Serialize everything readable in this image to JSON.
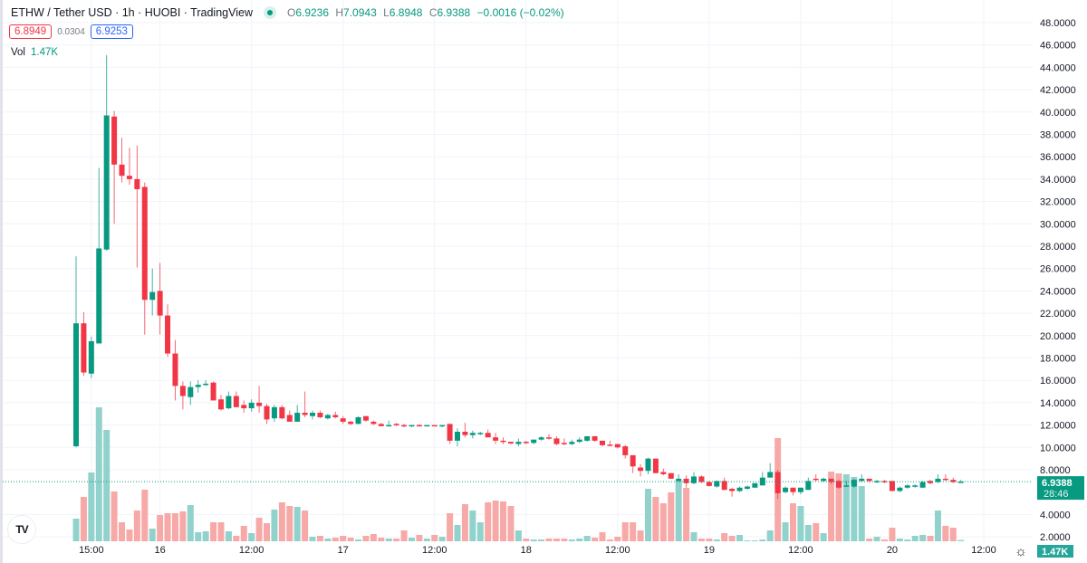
{
  "header": {
    "title": "ETHW / Tether USD · 1h · HUOBI · TradingView",
    "status_icon": "market-open-dot-icon",
    "ohlc": {
      "o_label": "O",
      "o": "6.9236",
      "h_label": "H",
      "h": "7.0943",
      "l_label": "L",
      "l": "6.8948",
      "c_label": "C",
      "c": "6.9388",
      "change": "−0.0016 (−0.02%)"
    },
    "bid": "6.8949",
    "spread": "0.0304",
    "ask": "6.9253",
    "volume_label": "Vol",
    "volume_value": "1.47K"
  },
  "price_axis": {
    "last_price": "6.9388",
    "countdown": "28:46",
    "volume_badge": "1.47K"
  },
  "colors": {
    "up": "#089981",
    "down": "#f23645",
    "volume_up": "#92d2cc",
    "volume_down": "#f7a9a7",
    "bid_border": "#f23645",
    "ask_border": "#2962ff"
  },
  "logo_text": "TV",
  "settings_icon": "gear-icon",
  "chart_data": {
    "type": "candlestick",
    "title": "ETHW / Tether USD · 1h · HUOBI",
    "interval": "1h",
    "ylim": [
      2,
      48
    ],
    "grid": true,
    "y_ticks": [
      "48.0000",
      "46.0000",
      "44.0000",
      "42.0000",
      "40.0000",
      "38.0000",
      "36.0000",
      "34.0000",
      "32.0000",
      "30.0000",
      "28.0000",
      "26.0000",
      "24.0000",
      "22.0000",
      "20.0000",
      "18.0000",
      "16.0000",
      "14.0000",
      "12.0000",
      "10.0000",
      "8.0000",
      "4.0000",
      "2.0000"
    ],
    "x_ticks": [
      "15:00",
      "16",
      "12:00",
      "17",
      "12:00",
      "18",
      "12:00",
      "19",
      "12:00",
      "20",
      "12:00"
    ],
    "ohlc": [
      [
        10.1,
        27.1,
        10.0,
        21.1
      ],
      [
        21.1,
        22.1,
        16.4,
        16.7
      ],
      [
        16.6,
        19.9,
        16.2,
        19.5
      ],
      [
        19.3,
        35.0,
        19.3,
        27.8
      ],
      [
        27.7,
        45.1,
        27.6,
        39.7
      ],
      [
        39.6,
        40.1,
        30.0,
        35.3
      ],
      [
        35.3,
        37.7,
        33.7,
        34.3
      ],
      [
        34.3,
        36.8,
        33.5,
        34.0
      ],
      [
        34.0,
        37.0,
        26.1,
        33.1
      ],
      [
        33.3,
        33.7,
        20.1,
        23.2
      ],
      [
        23.2,
        26.0,
        21.8,
        23.9
      ],
      [
        24.0,
        26.5,
        20.1,
        21.8
      ],
      [
        21.8,
        22.8,
        18.1,
        18.4
      ],
      [
        18.4,
        19.6,
        14.2,
        15.5
      ],
      [
        15.5,
        15.9,
        13.4,
        14.6
      ],
      [
        14.5,
        15.9,
        13.8,
        15.4
      ],
      [
        15.4,
        16.0,
        14.9,
        15.6
      ],
      [
        15.6,
        16.0,
        15.5,
        15.7
      ],
      [
        15.8,
        15.9,
        14.2,
        14.2
      ],
      [
        14.3,
        14.7,
        13.3,
        13.4
      ],
      [
        13.5,
        15.0,
        13.4,
        14.6
      ],
      [
        14.6,
        15.0,
        13.6,
        13.6
      ],
      [
        13.8,
        14.2,
        13.1,
        13.5
      ],
      [
        13.5,
        14.3,
        13.2,
        14.0
      ],
      [
        14.0,
        15.5,
        13.1,
        13.7
      ],
      [
        13.7,
        13.9,
        12.1,
        12.5
      ],
      [
        12.6,
        13.8,
        12.3,
        13.6
      ],
      [
        13.6,
        13.8,
        12.5,
        12.6
      ],
      [
        12.9,
        13.3,
        12.3,
        12.3
      ],
      [
        12.3,
        13.8,
        12.3,
        13.1
      ],
      [
        13.1,
        15.0,
        12.7,
        12.9
      ],
      [
        12.8,
        13.3,
        12.5,
        13.1
      ],
      [
        13.1,
        13.3,
        12.6,
        12.7
      ],
      [
        12.6,
        13.0,
        12.5,
        12.9
      ],
      [
        12.9,
        13.2,
        12.6,
        12.7
      ],
      [
        12.6,
        12.8,
        12.1,
        12.3
      ],
      [
        12.3,
        12.4,
        12.0,
        12.1
      ],
      [
        12.1,
        12.8,
        12.1,
        12.7
      ],
      [
        12.8,
        12.8,
        12.3,
        12.4
      ],
      [
        12.3,
        12.4,
        12.0,
        12.1
      ],
      [
        12.1,
        12.2,
        11.9,
        11.9
      ],
      [
        11.9,
        12.4,
        11.9,
        12.0
      ],
      [
        12.1,
        12.2,
        11.9,
        12.0
      ],
      [
        12.0,
        12.1,
        11.8,
        11.9
      ],
      [
        11.9,
        12.0,
        11.8,
        12.0
      ],
      [
        12.0,
        12.1,
        11.9,
        11.9
      ],
      [
        11.9,
        12.0,
        11.9,
        12.0
      ],
      [
        12.0,
        12.0,
        11.9,
        11.9
      ],
      [
        11.9,
        12.0,
        11.8,
        12.0
      ],
      [
        12.1,
        12.1,
        10.3,
        10.6
      ],
      [
        10.6,
        11.7,
        10.1,
        11.4
      ],
      [
        11.4,
        12.2,
        10.9,
        11.1
      ],
      [
        11.1,
        11.5,
        10.8,
        11.3
      ],
      [
        11.2,
        11.4,
        11.1,
        11.3
      ],
      [
        11.3,
        11.6,
        10.9,
        10.9
      ],
      [
        10.9,
        11.3,
        10.3,
        10.6
      ],
      [
        10.6,
        10.9,
        10.3,
        10.5
      ],
      [
        10.5,
        10.5,
        10.3,
        10.35
      ],
      [
        10.3,
        10.8,
        10.1,
        10.5
      ],
      [
        10.5,
        10.6,
        10.3,
        10.4
      ],
      [
        10.4,
        10.7,
        10.3,
        10.7
      ],
      [
        10.7,
        11.0,
        10.6,
        10.9
      ],
      [
        10.9,
        11.2,
        10.7,
        10.8
      ],
      [
        10.8,
        11.0,
        10.2,
        10.3
      ],
      [
        10.4,
        10.8,
        10.2,
        10.3
      ],
      [
        10.3,
        10.7,
        10.2,
        10.5
      ],
      [
        10.5,
        10.9,
        10.4,
        10.7
      ],
      [
        10.6,
        11.0,
        10.5,
        11.0
      ],
      [
        11.0,
        11.0,
        10.5,
        10.6
      ],
      [
        10.6,
        10.6,
        10.1,
        10.2
      ],
      [
        10.25,
        10.6,
        10.1,
        10.15
      ],
      [
        10.3,
        10.3,
        9.9,
        10.0
      ],
      [
        10.1,
        10.2,
        9.0,
        9.3
      ],
      [
        9.3,
        9.3,
        7.7,
        8.3
      ],
      [
        8.2,
        8.5,
        7.4,
        7.9
      ],
      [
        7.9,
        9.1,
        7.6,
        9.0
      ],
      [
        9.0,
        9.0,
        7.7,
        7.7
      ],
      [
        7.8,
        8.1,
        7.5,
        7.6
      ],
      [
        7.7,
        7.7,
        7.2,
        7.2
      ],
      [
        7.0,
        7.6,
        7.0,
        7.2
      ],
      [
        7.2,
        7.5,
        6.4,
        6.8
      ],
      [
        6.8,
        7.8,
        6.7,
        7.4
      ],
      [
        7.4,
        7.5,
        6.8,
        6.9
      ],
      [
        6.9,
        7.0,
        6.5,
        6.55
      ],
      [
        6.5,
        7.0,
        6.4,
        7.0
      ],
      [
        7.0,
        7.3,
        6.2,
        6.2
      ],
      [
        6.3,
        6.4,
        5.6,
        6.1
      ],
      [
        6.1,
        6.5,
        6.0,
        6.4
      ],
      [
        6.3,
        6.6,
        6.2,
        6.5
      ],
      [
        6.4,
        6.8,
        6.4,
        6.8
      ],
      [
        6.6,
        7.8,
        6.6,
        7.3
      ],
      [
        7.3,
        8.6,
        7.3,
        7.8
      ],
      [
        7.8,
        8.0,
        5.4,
        5.9
      ],
      [
        6.0,
        6.5,
        5.9,
        6.4
      ],
      [
        6.4,
        6.4,
        5.7,
        6.0
      ],
      [
        6.0,
        6.4,
        5.8,
        6.4
      ],
      [
        6.2,
        7.3,
        6.2,
        7.0
      ],
      [
        7.2,
        7.6,
        7.0,
        7.1
      ],
      [
        7.0,
        7.3,
        6.9,
        7.2
      ],
      [
        7.2,
        7.2,
        6.7,
        6.9
      ],
      [
        7.0,
        7.1,
        6.3,
        6.4
      ],
      [
        6.5,
        7.0,
        6.5,
        6.6
      ],
      [
        6.5,
        7.2,
        6.4,
        7.1
      ],
      [
        7.0,
        7.6,
        6.9,
        7.2
      ],
      [
        7.2,
        7.2,
        6.9,
        7.0
      ],
      [
        6.9,
        7.1,
        6.8,
        7.0
      ],
      [
        7.0,
        7.1,
        6.8,
        6.9
      ],
      [
        7.0,
        7.0,
        6.1,
        6.1
      ],
      [
        6.1,
        6.5,
        6.0,
        6.4
      ],
      [
        6.4,
        6.7,
        6.3,
        6.6
      ],
      [
        6.5,
        6.7,
        6.4,
        6.6
      ],
      [
        6.4,
        7.0,
        6.4,
        6.9
      ],
      [
        7.0,
        7.1,
        6.7,
        6.8
      ],
      [
        6.9,
        7.6,
        6.8,
        7.2
      ],
      [
        7.2,
        7.6,
        7.0,
        7.1
      ],
      [
        7.1,
        7.3,
        6.8,
        6.9
      ],
      [
        6.9236,
        7.0943,
        6.8948,
        6.9388
      ]
    ],
    "volume_k": [
      25,
      49,
      76,
      148,
      123,
      55,
      21,
      13,
      34,
      57,
      14,
      29,
      31,
      31,
      33,
      40,
      10,
      11,
      21,
      21,
      11,
      6,
      17,
      9,
      26,
      20,
      35,
      43,
      39,
      38,
      34,
      5,
      6,
      3,
      4,
      6,
      4,
      2,
      6,
      8,
      4,
      3,
      3,
      12,
      4,
      7,
      3,
      7,
      5,
      31,
      18,
      41,
      34,
      21,
      43,
      45,
      44,
      39,
      12,
      3,
      2,
      2,
      3,
      3,
      3,
      2,
      3,
      6,
      4,
      10,
      2,
      5,
      21,
      21,
      12,
      58,
      49,
      42,
      54,
      67,
      59,
      10,
      3,
      3,
      2,
      9,
      6,
      7,
      1,
      1,
      2,
      12,
      114,
      21,
      42,
      39,
      18,
      20,
      9,
      77,
      75,
      74,
      71,
      61,
      3,
      5,
      2,
      15,
      3,
      2,
      6,
      7,
      6,
      34,
      17,
      15,
      1.47
    ],
    "last_price": 6.9388
  }
}
